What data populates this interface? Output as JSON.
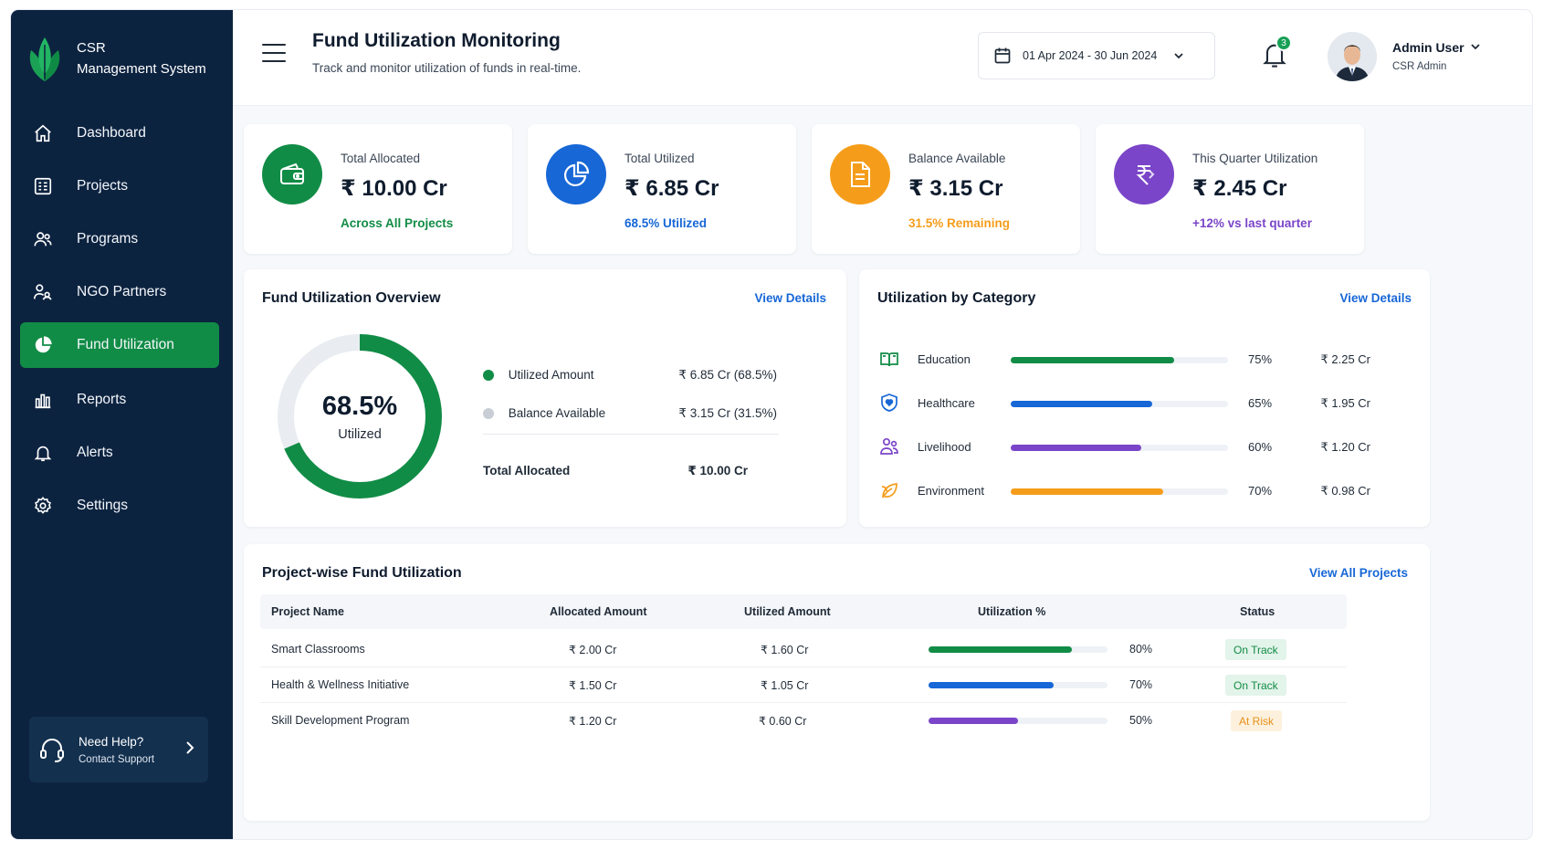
{
  "sidebar": {
    "brand_line1": "CSR",
    "brand_line2": "Management System",
    "items": [
      {
        "label": "Dashboard",
        "icon": "home-icon"
      },
      {
        "label": "Projects",
        "icon": "projects-icon"
      },
      {
        "label": "Programs",
        "icon": "users-icon"
      },
      {
        "label": "NGO Partners",
        "icon": "partners-icon"
      },
      {
        "label": "Fund Utilization",
        "icon": "pie-chart-icon",
        "active": true
      },
      {
        "label": "Reports",
        "icon": "bar-chart-icon"
      },
      {
        "label": "Alerts",
        "icon": "bell-icon"
      },
      {
        "label": "Settings",
        "icon": "gear-icon"
      }
    ],
    "help_title": "Need Help?",
    "help_subtitle": "Contact Support"
  },
  "header": {
    "title": "Fund Utilization Monitoring",
    "subtitle": "Track and monitor utilization of funds in real-time.",
    "date_range": "01 Apr 2024 - 30 Jun 2024",
    "notification_count": "3",
    "user_name": "Admin User",
    "user_role": "CSR Admin"
  },
  "stats": [
    {
      "label": "Total Allocated",
      "value": "₹ 10.00 Cr",
      "note": "Across All Projects",
      "color": "#118c46",
      "icon": "wallet-icon"
    },
    {
      "label": "Total Utilized",
      "value": "₹ 6.85 Cr",
      "note": "68.5% Utilized",
      "color": "#1767d6",
      "icon": "pie-chart-icon"
    },
    {
      "label": "Balance Available",
      "value": "₹ 3.15 Cr",
      "note": "31.5% Remaining",
      "color": "#f59d1b",
      "icon": "document-icon"
    },
    {
      "label": "This Quarter Utilization",
      "value": "₹ 2.45 Cr",
      "note": "+12% vs last quarter",
      "color": "#7a45c8",
      "icon": "rupee-icon"
    }
  ],
  "overview": {
    "title": "Fund Utilization Overview",
    "link": "View Details",
    "center_value": "68.5%",
    "center_label": "Utilized",
    "utilized_fraction": 0.685,
    "legend": [
      {
        "label": "Utilized Amount",
        "value": "₹ 6.85 Cr (68.5%)",
        "color": "#118c46"
      },
      {
        "label": "Balance Available",
        "value": "₹ 3.15 Cr (31.5%)",
        "color": "#c9ced6"
      }
    ],
    "total_label": "Total Allocated",
    "total_value": "₹ 10.00 Cr"
  },
  "category": {
    "title": "Utilization by Category",
    "link": "View Details",
    "rows": [
      {
        "name": "Education",
        "pct": "75%",
        "fraction": 0.75,
        "amount": "₹ 2.25 Cr",
        "color": "#118c46",
        "icon": "book-icon"
      },
      {
        "name": "Healthcare",
        "pct": "65%",
        "fraction": 0.65,
        "amount": "₹ 1.95 Cr",
        "color": "#1767d6",
        "icon": "shield-heart-icon"
      },
      {
        "name": "Livelihood",
        "pct": "60%",
        "fraction": 0.6,
        "amount": "₹ 1.20 Cr",
        "color": "#7a45c8",
        "icon": "people-icon"
      },
      {
        "name": "Environment",
        "pct": "70%",
        "fraction": 0.7,
        "amount": "₹ 0.98 Cr",
        "color": "#f59d1b",
        "icon": "leaf-icon"
      }
    ]
  },
  "projects": {
    "title": "Project-wise Fund Utilization",
    "link": "View All Projects",
    "columns": [
      "Project Name",
      "Allocated Amount",
      "Utilized Amount",
      "Utilization %",
      "Status"
    ],
    "rows": [
      {
        "name": "Smart Classrooms",
        "allocated": "₹ 2.00 Cr",
        "utilized": "₹ 1.60 Cr",
        "pct": "80%",
        "fraction": 0.8,
        "color": "#118c46",
        "status": "On Track",
        "status_color": "#118c46",
        "status_bg": "#e3f4ea"
      },
      {
        "name": "Health & Wellness Initiative",
        "allocated": "₹ 1.50 Cr",
        "utilized": "₹ 1.05 Cr",
        "pct": "70%",
        "fraction": 0.7,
        "color": "#1767d6",
        "status": "On Track",
        "status_color": "#118c46",
        "status_bg": "#e3f4ea"
      },
      {
        "name": "Skill Development Program",
        "allocated": "₹ 1.20 Cr",
        "utilized": "₹ 0.60 Cr",
        "pct": "50%",
        "fraction": 0.5,
        "color": "#7a45c8",
        "status": "At Risk",
        "status_color": "#e6901a",
        "status_bg": "#fdf1de"
      }
    ]
  }
}
